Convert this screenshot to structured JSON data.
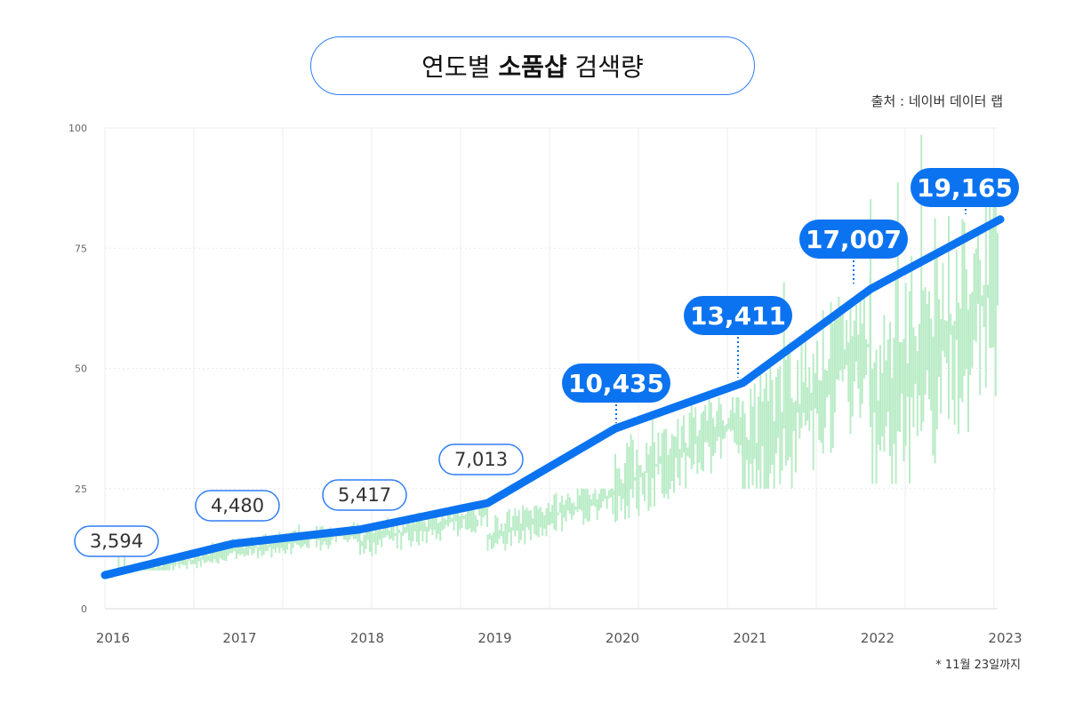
{
  "header": {
    "title_prefix": "연도별 ",
    "title_bold": "소품샵",
    "title_suffix": " 검색량",
    "source": "출처 : 네이버 데이터 랩",
    "note": "* 11월 23일까지"
  },
  "colors": {
    "line": "#0b73f0",
    "pill_fill": "#0b73f0",
    "pill_outline": "#2f7df6",
    "bg_series": "#b9ecc6",
    "grid": "#ececec"
  },
  "chart_data": {
    "type": "line",
    "ylim": [
      0,
      100
    ],
    "y_ticks": [
      0,
      25,
      50,
      75,
      100
    ],
    "categories": [
      "2016",
      "2017",
      "2018",
      "2019",
      "2020",
      "2021",
      "2022",
      "2023"
    ],
    "series": [
      {
        "values": [
          7,
          13.5,
          16.5,
          22,
          37.5,
          47,
          66.5,
          81
        ],
        "labels": [
          "3,594",
          "4,480",
          "5,417",
          "7,013",
          "10,435",
          "13,411",
          "17,007",
          "19,165"
        ]
      }
    ],
    "label_style": [
      "outline",
      "outline",
      "outline",
      "outline",
      "filled",
      "filled",
      "filled",
      "filled"
    ],
    "background_series": {
      "segments": [
        [
          6,
          12,
          8,
          14
        ],
        [
          12,
          16,
          10,
          18
        ],
        [
          14,
          20,
          10,
          21
        ],
        [
          15,
          24,
          12,
          25
        ],
        [
          25,
          40,
          18,
          44
        ],
        [
          32,
          55,
          25,
          73
        ],
        [
          40,
          68,
          26,
          100
        ],
        [
          40,
          70,
          32,
          93
        ]
      ]
    }
  }
}
